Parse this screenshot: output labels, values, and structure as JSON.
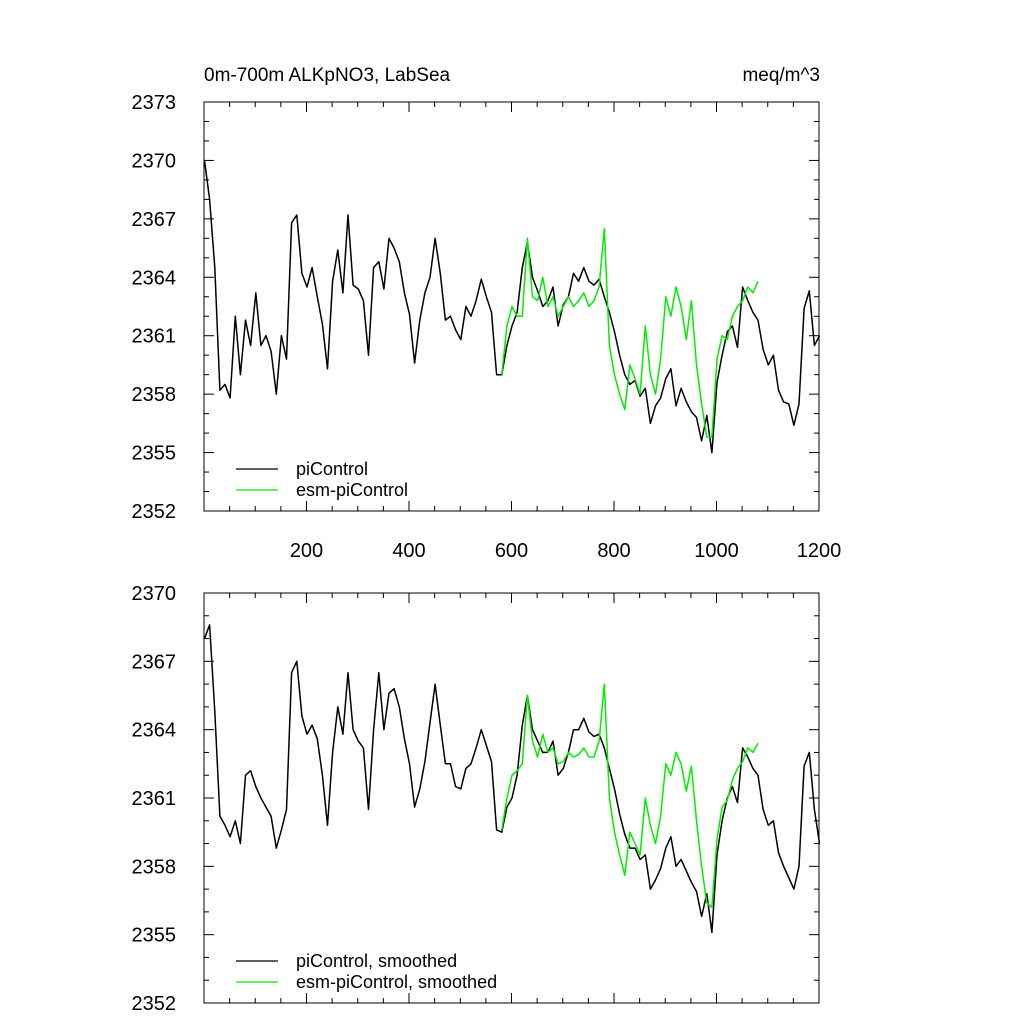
{
  "figure": {
    "title_left": "0m-700m ALKpNO3, LabSea",
    "title_right": "meq/m^3"
  },
  "colors": {
    "piControl": "#000000",
    "esm_piControl": "#00ee00",
    "axis": "#000000",
    "background": "#ffffff"
  },
  "chart_data": [
    {
      "type": "line",
      "title": "0m-700m ALKpNO3, LabSea",
      "units": "meq/m^3",
      "xlim": [
        0,
        1200
      ],
      "ylim": [
        2352,
        2373
      ],
      "x_ticks": [
        200,
        400,
        600,
        800,
        1000,
        1200
      ],
      "x_tick_labels": [
        "200",
        "400",
        "600",
        "800",
        "1000",
        "1200"
      ],
      "y_ticks": [
        2352,
        2355,
        2358,
        2361,
        2364,
        2367,
        2370,
        2373
      ],
      "y_tick_labels": [
        "2352",
        "2355",
        "2358",
        "2361",
        "2364",
        "2367",
        "2370",
        "2373"
      ],
      "legend": "bottom-left",
      "series": [
        {
          "name": "piControl",
          "color": "#000000",
          "x_start": 1,
          "x_step": 10,
          "values": [
            2370.0,
            2368.0,
            2364.5,
            2358.2,
            2358.5,
            2357.8,
            2362.0,
            2359.0,
            2361.8,
            2360.5,
            2363.2,
            2360.5,
            2361.0,
            2360.2,
            2358.0,
            2361.0,
            2359.8,
            2366.8,
            2367.2,
            2364.2,
            2363.5,
            2364.5,
            2363.0,
            2361.6,
            2359.3,
            2363.8,
            2365.4,
            2363.2,
            2367.2,
            2363.6,
            2363.4,
            2362.8,
            2360.0,
            2364.5,
            2364.8,
            2363.4,
            2366.0,
            2365.5,
            2364.8,
            2363.2,
            2362.1,
            2359.6,
            2361.8,
            2363.2,
            2364.0,
            2366.0,
            2364.2,
            2361.8,
            2362.0,
            2361.3,
            2360.8,
            2362.5,
            2362.0,
            2362.8,
            2363.9,
            2363.0,
            2362.2,
            2359.0,
            2359.0,
            2360.5,
            2361.5,
            2362.2,
            2364.5,
            2365.8,
            2364.0,
            2363.3,
            2362.5,
            2362.8,
            2363.5,
            2361.5,
            2362.6,
            2363.0,
            2364.2,
            2363.8,
            2364.5,
            2363.8,
            2363.6,
            2363.9,
            2363.0,
            2362.2,
            2361.2,
            2360.0,
            2359.0,
            2358.5,
            2358.7,
            2357.9,
            2358.3,
            2356.5,
            2357.4,
            2357.8,
            2358.8,
            2359.3,
            2357.4,
            2358.3,
            2357.6,
            2357.1,
            2356.8,
            2355.6,
            2356.9,
            2355.0,
            2358.6,
            2360.0,
            2361.2,
            2361.5,
            2360.4,
            2363.5,
            2362.8,
            2362.2,
            2361.8,
            2360.3,
            2359.5,
            2360.0,
            2358.2,
            2357.6,
            2357.5,
            2356.4,
            2357.5,
            2362.4,
            2363.3,
            2360.5,
            2361.0
          ]
        },
        {
          "name": "esm-piControl",
          "color": "#00ee00",
          "x_start": 581,
          "x_step": 10,
          "values": [
            2359.0,
            2361.5,
            2362.5,
            2362.0,
            2362.0,
            2366.0,
            2363.0,
            2362.8,
            2364.0,
            2362.5,
            2363.0,
            2362.0,
            2362.5,
            2363.0,
            2362.5,
            2362.8,
            2363.2,
            2362.5,
            2362.8,
            2363.5,
            2366.5,
            2360.5,
            2359.0,
            2358.0,
            2357.2,
            2359.5,
            2358.8,
            2358.0,
            2361.5,
            2359.0,
            2358.0,
            2359.8,
            2363.0,
            2362.0,
            2363.5,
            2362.5,
            2360.8,
            2362.8,
            2359.5,
            2357.5,
            2355.8,
            2355.8,
            2359.8,
            2361.0,
            2360.8,
            2362.0,
            2362.5,
            2362.8,
            2363.5,
            2363.2,
            2363.8
          ]
        }
      ]
    },
    {
      "type": "line",
      "xlim": [
        0,
        1200
      ],
      "ylim": [
        2352,
        2370
      ],
      "y_ticks": [
        2352,
        2355,
        2358,
        2361,
        2364,
        2367,
        2370
      ],
      "y_tick_labels": [
        "2352",
        "2355",
        "2358",
        "2361",
        "2364",
        "2367",
        "2370"
      ],
      "legend": "bottom-left",
      "series": [
        {
          "name": "piControl, smoothed",
          "color": "#000000",
          "x_start": 1,
          "x_step": 10,
          "values": [
            2368.0,
            2368.6,
            2364.8,
            2360.2,
            2359.8,
            2359.3,
            2360.0,
            2359.0,
            2362.0,
            2362.2,
            2361.5,
            2361.0,
            2360.6,
            2360.2,
            2358.8,
            2359.6,
            2360.5,
            2366.5,
            2367.0,
            2364.6,
            2363.8,
            2364.2,
            2363.6,
            2362.0,
            2359.8,
            2363.0,
            2365.0,
            2363.8,
            2366.5,
            2364.0,
            2363.5,
            2363.2,
            2360.5,
            2364.0,
            2366.5,
            2364.0,
            2365.6,
            2365.8,
            2365.0,
            2363.6,
            2362.5,
            2360.6,
            2361.4,
            2362.6,
            2364.3,
            2366.0,
            2364.2,
            2362.5,
            2362.5,
            2361.5,
            2361.4,
            2362.3,
            2362.5,
            2363.2,
            2364.0,
            2363.3,
            2362.6,
            2359.6,
            2359.5,
            2360.6,
            2361.0,
            2362.0,
            2364.2,
            2365.5,
            2364.0,
            2363.5,
            2363.0,
            2363.0,
            2363.5,
            2362.0,
            2362.3,
            2363.0,
            2364.0,
            2364.0,
            2364.5,
            2363.9,
            2363.7,
            2363.8,
            2363.2,
            2362.3,
            2361.4,
            2360.3,
            2359.4,
            2358.8,
            2358.8,
            2358.3,
            2358.5,
            2357.0,
            2357.4,
            2357.9,
            2358.8,
            2359.3,
            2358.0,
            2358.3,
            2357.8,
            2357.3,
            2356.9,
            2355.8,
            2356.8,
            2355.1,
            2358.5,
            2360.0,
            2361.0,
            2361.5,
            2360.8,
            2363.2,
            2362.8,
            2362.3,
            2362.0,
            2360.5,
            2359.8,
            2360.0,
            2358.6,
            2358.0,
            2357.5,
            2357.0,
            2358.0,
            2362.4,
            2363.0,
            2360.5,
            2359.0
          ]
        },
        {
          "name": "esm-piControl, smoothed",
          "color": "#00ee00",
          "x_start": 581,
          "x_step": 10,
          "values": [
            2359.6,
            2361.0,
            2362.0,
            2362.2,
            2362.5,
            2365.5,
            2363.5,
            2362.8,
            2363.8,
            2363.0,
            2363.2,
            2362.5,
            2362.6,
            2363.0,
            2362.8,
            2362.9,
            2363.2,
            2362.8,
            2362.8,
            2363.5,
            2366.0,
            2361.0,
            2359.5,
            2358.5,
            2357.6,
            2359.5,
            2359.0,
            2358.5,
            2361.0,
            2359.8,
            2359.0,
            2360.2,
            2362.5,
            2362.0,
            2363.0,
            2362.5,
            2361.3,
            2362.4,
            2360.0,
            2358.0,
            2356.4,
            2356.2,
            2359.2,
            2360.6,
            2360.9,
            2361.8,
            2362.3,
            2362.6,
            2363.2,
            2363.0,
            2363.4
          ]
        }
      ]
    }
  ]
}
